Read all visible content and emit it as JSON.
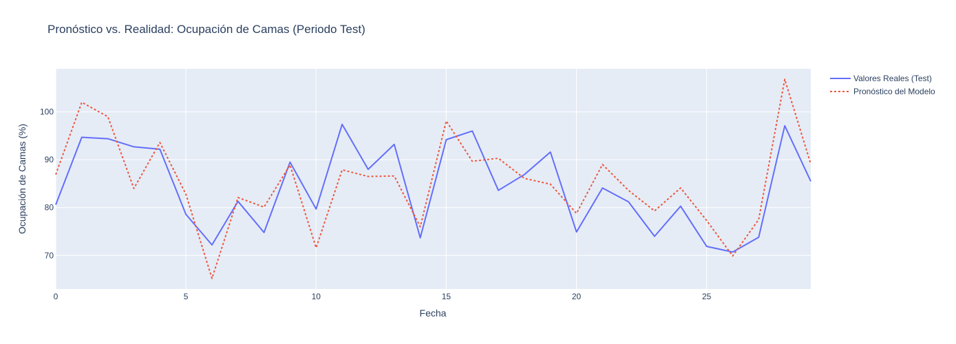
{
  "chart_data": {
    "type": "line",
    "title": "Pronóstico vs. Realidad: Ocupación de Camas (Periodo Test)",
    "xlabel": "Fecha",
    "ylabel": "Ocupación de Camas (%)",
    "xlim": [
      0,
      29
    ],
    "ylim": [
      63,
      109
    ],
    "x_ticks": [
      0,
      5,
      10,
      15,
      20,
      25
    ],
    "y_ticks": [
      70,
      80,
      90,
      100
    ],
    "grid": true,
    "legend_position": "top-right",
    "x": [
      0,
      1,
      2,
      3,
      4,
      5,
      6,
      7,
      8,
      9,
      10,
      11,
      12,
      13,
      14,
      15,
      16,
      17,
      18,
      19,
      20,
      21,
      22,
      23,
      24,
      25,
      26,
      27,
      28,
      29
    ],
    "series": [
      {
        "name": "Valores Reales (Test)",
        "color": "#636efa",
        "dash": "solid",
        "values": [
          80.6,
          94.7,
          94.4,
          92.7,
          92.2,
          78.6,
          72.2,
          81.3,
          74.8,
          89.5,
          79.7,
          97.4,
          88.0,
          93.2,
          73.7,
          94.2,
          96.0,
          83.6,
          86.9,
          91.6,
          74.9,
          84.1,
          81.2,
          74.0,
          80.3,
          71.9,
          70.7,
          73.8,
          97.1,
          85.5
        ]
      },
      {
        "name": "Pronóstico del Modelo",
        "color": "#ef553b",
        "dash": "dot",
        "values": [
          86.9,
          102.0,
          99.0,
          84.0,
          93.6,
          82.8,
          65.2,
          82.1,
          80.1,
          88.9,
          71.6,
          87.9,
          86.5,
          86.6,
          76.0,
          98.1,
          89.7,
          90.3,
          86.1,
          84.9,
          78.8,
          89.0,
          83.6,
          79.3,
          84.1,
          77.3,
          69.9,
          77.5,
          106.8,
          89.1
        ]
      }
    ]
  }
}
